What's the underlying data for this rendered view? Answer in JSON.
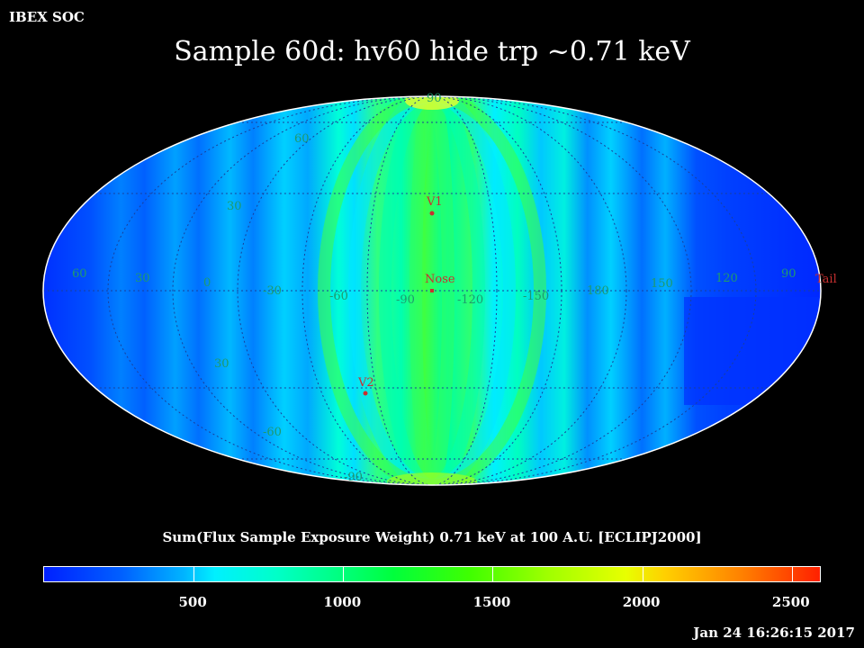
{
  "header": {
    "org_label": "IBEX SOC",
    "title": "Sample 60d: hv60 hide trp ~0.71 keV"
  },
  "map": {
    "projection": "Aitoff-Hammer (all-sky)",
    "latitude_labels": [
      "90",
      "60",
      "30",
      "30",
      "-60",
      "-90"
    ],
    "longitude_labels": [
      "60",
      "30",
      "0",
      "-30",
      "-60",
      "-90",
      "-120",
      "-150",
      "180",
      "150",
      "120",
      "90"
    ],
    "markers": [
      {
        "label": "V1",
        "color": "#d02020"
      },
      {
        "label": "Nose",
        "color": "#d02020"
      },
      {
        "label": "V2",
        "color": "#d02020"
      },
      {
        "label": "Tail",
        "color": "#d02020"
      }
    ],
    "grid_color": "#1a3f9a",
    "label_color": "#1e9a6e",
    "marker_color": "#c83030"
  },
  "colorbar": {
    "title": "Sum(Flux Sample Exposure Weight)  0.71 keV at 100 A.U. [ECLIPJ2000]",
    "min": 0,
    "max": 2600,
    "tick_labels": [
      "500",
      "1000",
      "1500",
      "2000",
      "2500"
    ],
    "tick_values": [
      500,
      1000,
      1500,
      2000,
      2500
    ]
  },
  "footer": {
    "timestamp": "Jan 24 16:26:15 2017"
  }
}
